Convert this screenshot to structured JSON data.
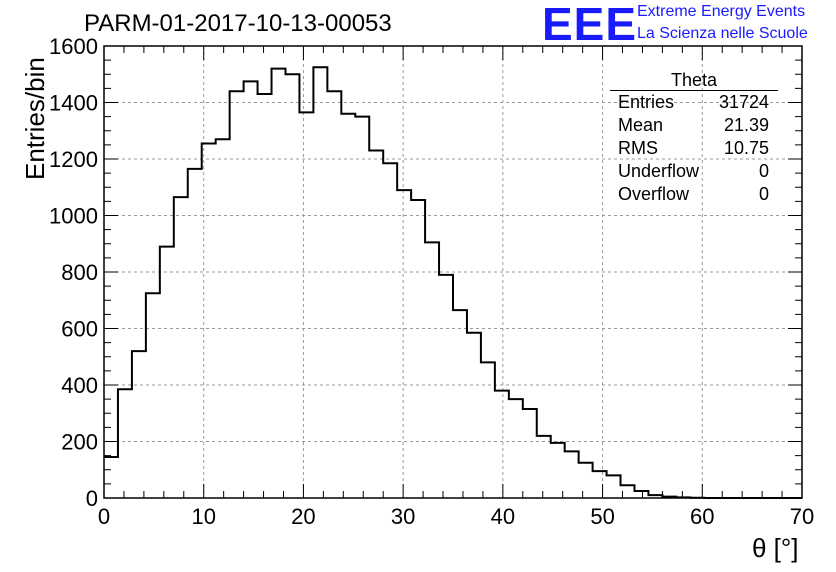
{
  "chart_data": {
    "type": "histogram",
    "title": "PARM-01-2017-10-13-00053",
    "xlabel": "θ [°]",
    "ylabel": "Entries/bin",
    "xlim": [
      0,
      70
    ],
    "ylim": [
      0,
      1600
    ],
    "bin_width": 1.4,
    "x_ticks": [
      0,
      10,
      20,
      30,
      40,
      50,
      60,
      70
    ],
    "y_ticks": [
      0,
      200,
      400,
      600,
      800,
      1000,
      1200,
      1400,
      1600
    ],
    "grid": true,
    "values": [
      145,
      385,
      520,
      725,
      890,
      1065,
      1165,
      1255,
      1270,
      1440,
      1475,
      1430,
      1520,
      1500,
      1365,
      1525,
      1440,
      1360,
      1350,
      1230,
      1185,
      1090,
      1055,
      905,
      790,
      665,
      585,
      480,
      380,
      350,
      315,
      220,
      195,
      165,
      125,
      95,
      80,
      45,
      25,
      10,
      5,
      2,
      1,
      0,
      0,
      0,
      0,
      0,
      0,
      0
    ],
    "stats_box": {
      "title": "Theta",
      "rows": [
        {
          "label": "Entries",
          "value": "31724"
        },
        {
          "label": "Mean",
          "value": "21.39"
        },
        {
          "label": "RMS",
          "value": "10.75"
        },
        {
          "label": "Underflow",
          "value": "0"
        },
        {
          "label": "Overflow",
          "value": "0"
        }
      ]
    },
    "logo": {
      "mark": "EEE",
      "line1": "Extreme Energy Events",
      "line2": "La Scienza nelle Scuole",
      "color": "#1a1aff"
    },
    "line_color": "#000000",
    "grid_color": "#9a9a9a"
  }
}
